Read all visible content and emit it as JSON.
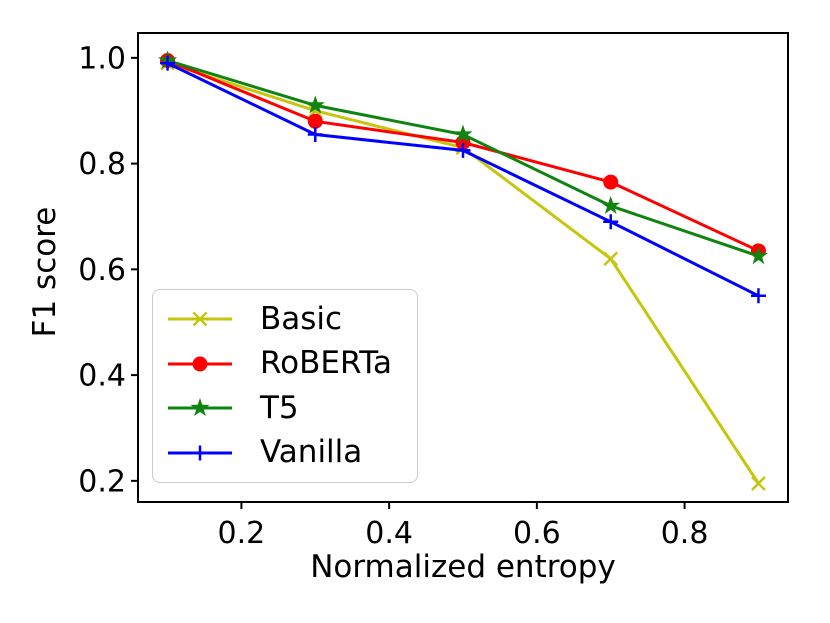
{
  "chart_data": {
    "type": "line",
    "xlabel": "Normalized entropy",
    "ylabel": "F1 score",
    "x": [
      0.1,
      0.3,
      0.5,
      0.7,
      0.9
    ],
    "series": [
      {
        "name": "Basic",
        "color": "#c6c60e",
        "marker": "x",
        "values": [
          0.99,
          0.9,
          0.83,
          0.62,
          0.195
        ]
      },
      {
        "name": "RoBERTa",
        "color": "#ff0000",
        "marker": "circle",
        "values": [
          0.995,
          0.88,
          0.84,
          0.765,
          0.635
        ]
      },
      {
        "name": "T5",
        "color": "#108410",
        "marker": "star",
        "values": [
          0.995,
          0.91,
          0.855,
          0.72,
          0.625
        ]
      },
      {
        "name": "Vanilla",
        "color": "#0000ff",
        "marker": "plus",
        "values": [
          0.99,
          0.855,
          0.825,
          0.69,
          0.55
        ]
      }
    ],
    "xticks": [
      0.2,
      0.4,
      0.6,
      0.8
    ],
    "yticks": [
      0.2,
      0.4,
      0.6,
      0.8,
      1.0
    ],
    "xlim": [
      0.06,
      0.94
    ],
    "ylim": [
      0.16,
      1.047
    ],
    "grid": false,
    "legend_position": "lower left",
    "axis_color": "#000000",
    "tick_label_format": "one-decimal"
  }
}
